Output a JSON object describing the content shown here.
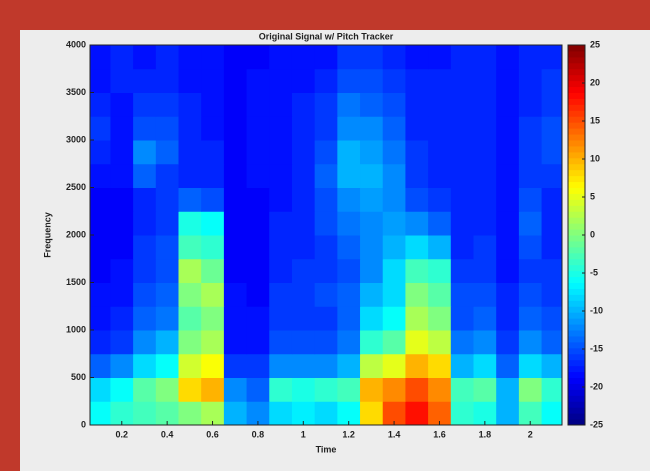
{
  "chart_data": {
    "type": "heatmap",
    "title": "Original Signal w/ Pitch Tracker",
    "x_label": "Time",
    "y_label": "Frequency",
    "x": [
      0.1,
      0.2,
      0.3,
      0.4,
      0.5,
      0.6,
      0.7,
      0.8,
      0.9,
      1.0,
      1.1,
      1.2,
      1.3,
      1.4,
      1.5,
      1.6,
      1.7,
      1.8,
      1.9,
      2.0,
      2.1
    ],
    "y": [
      125,
      375,
      625,
      875,
      1125,
      1375,
      1625,
      1875,
      2125,
      2375,
      2625,
      2875,
      3125,
      3375,
      3625,
      3875
    ],
    "values": [
      [
        -6,
        -4,
        -3,
        -2,
        0,
        2,
        -10,
        -12,
        -8,
        -7,
        -8,
        -6,
        8,
        15,
        18,
        14,
        -4,
        -5,
        -10,
        -3,
        -6
      ],
      [
        -8,
        -6,
        -2,
        0,
        8,
        10,
        -12,
        -14,
        -4,
        -5,
        -4,
        -3,
        10,
        12,
        15,
        12,
        -3,
        -2,
        -10,
        0,
        -4
      ],
      [
        -14,
        -12,
        -8,
        -6,
        4,
        6,
        -16,
        -16,
        -12,
        -12,
        -12,
        -10,
        3,
        5,
        10,
        8,
        -10,
        -8,
        -14,
        -8,
        -10
      ],
      [
        -17,
        -16,
        -12,
        -10,
        0,
        2,
        -18,
        -18,
        -15,
        -15,
        -15,
        -13,
        -4,
        -2,
        5,
        3,
        -13,
        -12,
        -16,
        -12,
        -14
      ],
      [
        -18,
        -17,
        -14,
        -13,
        -2,
        0,
        -18,
        -18,
        -16,
        -16,
        -16,
        -14,
        -8,
        -6,
        2,
        0,
        -15,
        -14,
        -17,
        -14,
        -15
      ],
      [
        -18,
        -18,
        -15,
        -14,
        0,
        2,
        -18,
        -19,
        -16,
        -16,
        -15,
        -14,
        -10,
        -8,
        0,
        -2,
        -15,
        -15,
        -17,
        -15,
        -16
      ],
      [
        -19,
        -18,
        -16,
        -15,
        2,
        -1,
        -19,
        -19,
        -17,
        -16,
        -16,
        -15,
        -12,
        -8,
        -3,
        -4,
        -16,
        -16,
        -18,
        -16,
        -16
      ],
      [
        -19,
        -19,
        -16,
        -15,
        -3,
        -4,
        -19,
        -19,
        -17,
        -17,
        -16,
        -14,
        -12,
        -10,
        -8,
        -10,
        -17,
        -16,
        -18,
        -15,
        -17
      ],
      [
        -19,
        -19,
        -17,
        -16,
        -5,
        -6,
        -19,
        -19,
        -17,
        -17,
        -15,
        -13,
        -12,
        -11,
        -12,
        -14,
        -17,
        -17,
        -18,
        -14,
        -17
      ],
      [
        -19,
        -19,
        -17,
        -16,
        -14,
        -15,
        -19,
        -19,
        -18,
        -17,
        -15,
        -12,
        -11,
        -12,
        -15,
        -16,
        -17,
        -17,
        -18,
        -15,
        -17
      ],
      [
        -18,
        -18,
        -14,
        -16,
        -17,
        -17,
        -19,
        -18,
        -18,
        -17,
        -14,
        -10,
        -10,
        -12,
        -16,
        -17,
        -17,
        -17,
        -18,
        -16,
        -16
      ],
      [
        -17,
        -18,
        -12,
        -14,
        -17,
        -17,
        -19,
        -18,
        -18,
        -17,
        -15,
        -10,
        -11,
        -13,
        -16,
        -17,
        -17,
        -17,
        -18,
        -16,
        -15
      ],
      [
        -16,
        -18,
        -15,
        -15,
        -17,
        -18,
        -19,
        -18,
        -18,
        -17,
        -16,
        -12,
        -12,
        -14,
        -17,
        -17,
        -17,
        -17,
        -18,
        -16,
        -15
      ],
      [
        -17,
        -18,
        -16,
        -16,
        -17,
        -18,
        -19,
        -18,
        -18,
        -17,
        -16,
        -13,
        -14,
        -15,
        -17,
        -17,
        -17,
        -17,
        -18,
        -17,
        -16
      ],
      [
        -18,
        -17,
        -17,
        -17,
        -18,
        -18,
        -19,
        -18,
        -18,
        -18,
        -17,
        -15,
        -15,
        -16,
        -17,
        -17,
        -17,
        -17,
        -18,
        -17,
        -16
      ],
      [
        -18,
        -17,
        -18,
        -17,
        -18,
        -18,
        -19,
        -19,
        -18,
        -18,
        -18,
        -16,
        -16,
        -17,
        -18,
        -18,
        -17,
        -17,
        -18,
        -17,
        -17
      ]
    ],
    "xlim": [
      0.06,
      2.14
    ],
    "xticks": [
      0.2,
      0.4,
      0.6,
      0.8,
      1,
      1.2,
      1.4,
      1.6,
      1.8,
      2
    ],
    "ylim": [
      0,
      4000
    ],
    "yticks": [
      0,
      500,
      1000,
      1500,
      2000,
      2500,
      3000,
      3500,
      4000
    ],
    "clim": [
      -25,
      25
    ],
    "cticks": [
      -25,
      -20,
      -15,
      -10,
      -5,
      0,
      5,
      10,
      15,
      20,
      25
    ],
    "colormap": "jet"
  }
}
